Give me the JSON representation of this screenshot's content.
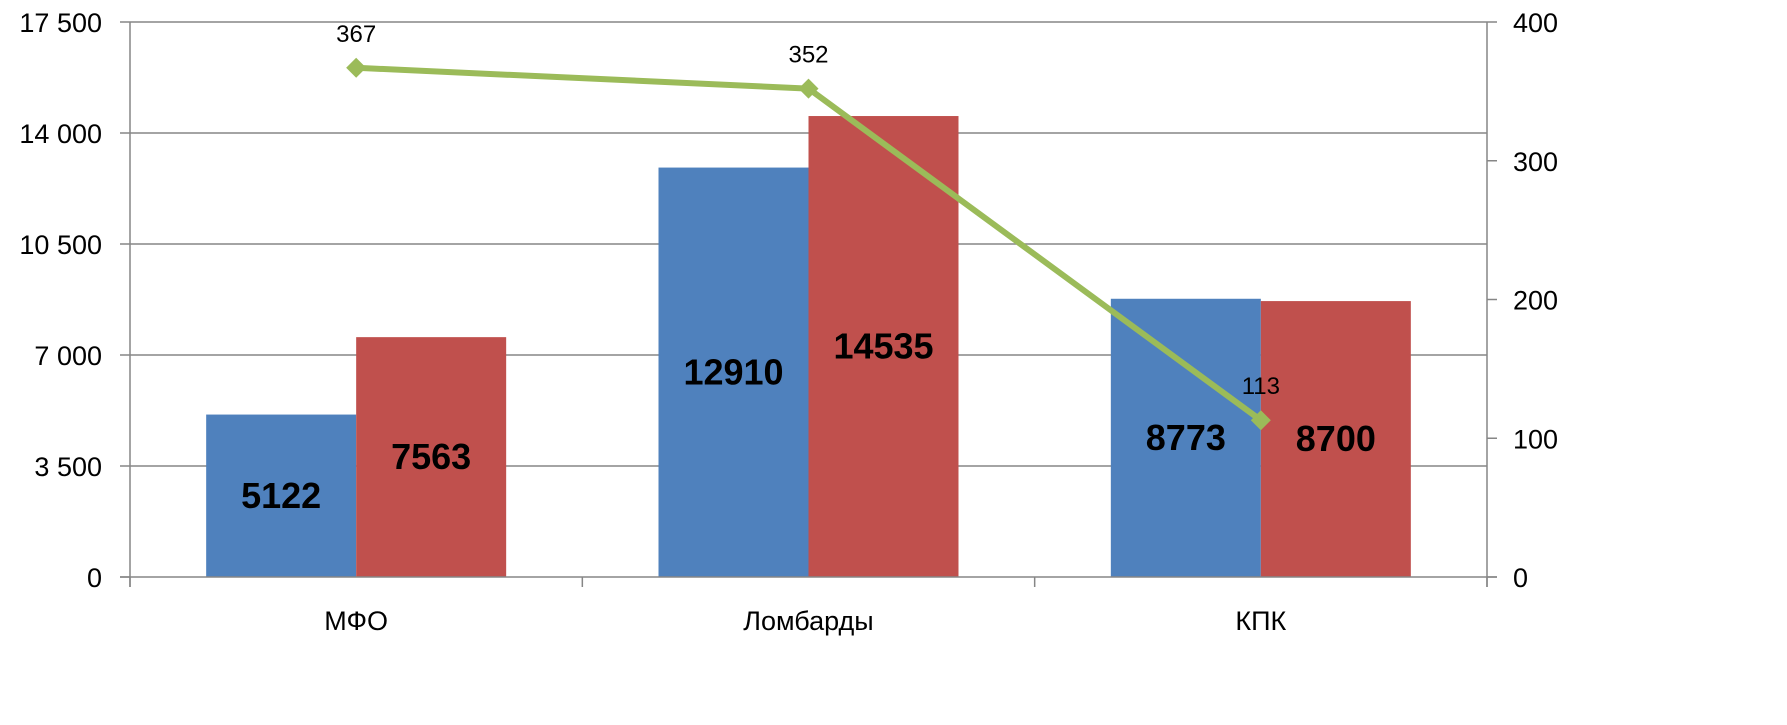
{
  "chart_data": {
    "type": "bar",
    "categories": [
      "МФО",
      "Ломбарды",
      "КПК"
    ],
    "series": [
      {
        "type": "bar",
        "axis": "left",
        "color": "#4F81BD",
        "values": [
          5122,
          12910,
          8773
        ]
      },
      {
        "type": "bar",
        "axis": "left",
        "color": "#C0504D",
        "values": [
          7563,
          14535,
          8700
        ]
      },
      {
        "type": "line",
        "axis": "right",
        "color": "#9BBB59",
        "values": [
          367,
          352,
          113
        ]
      }
    ],
    "left_axis": {
      "min": 0,
      "max": 17500,
      "ticks": [
        0,
        3500,
        7000,
        10500,
        14000,
        17500
      ],
      "tick_labels": [
        "0",
        "3 500",
        "7 000",
        "10 500",
        "14 000",
        "17 500"
      ]
    },
    "right_axis": {
      "min": 0,
      "max": 400,
      "ticks": [
        0,
        100,
        200,
        300,
        400
      ],
      "tick_labels": [
        "0",
        "100",
        "200",
        "300",
        "400"
      ]
    },
    "gridlines": true,
    "legend": "none"
  }
}
